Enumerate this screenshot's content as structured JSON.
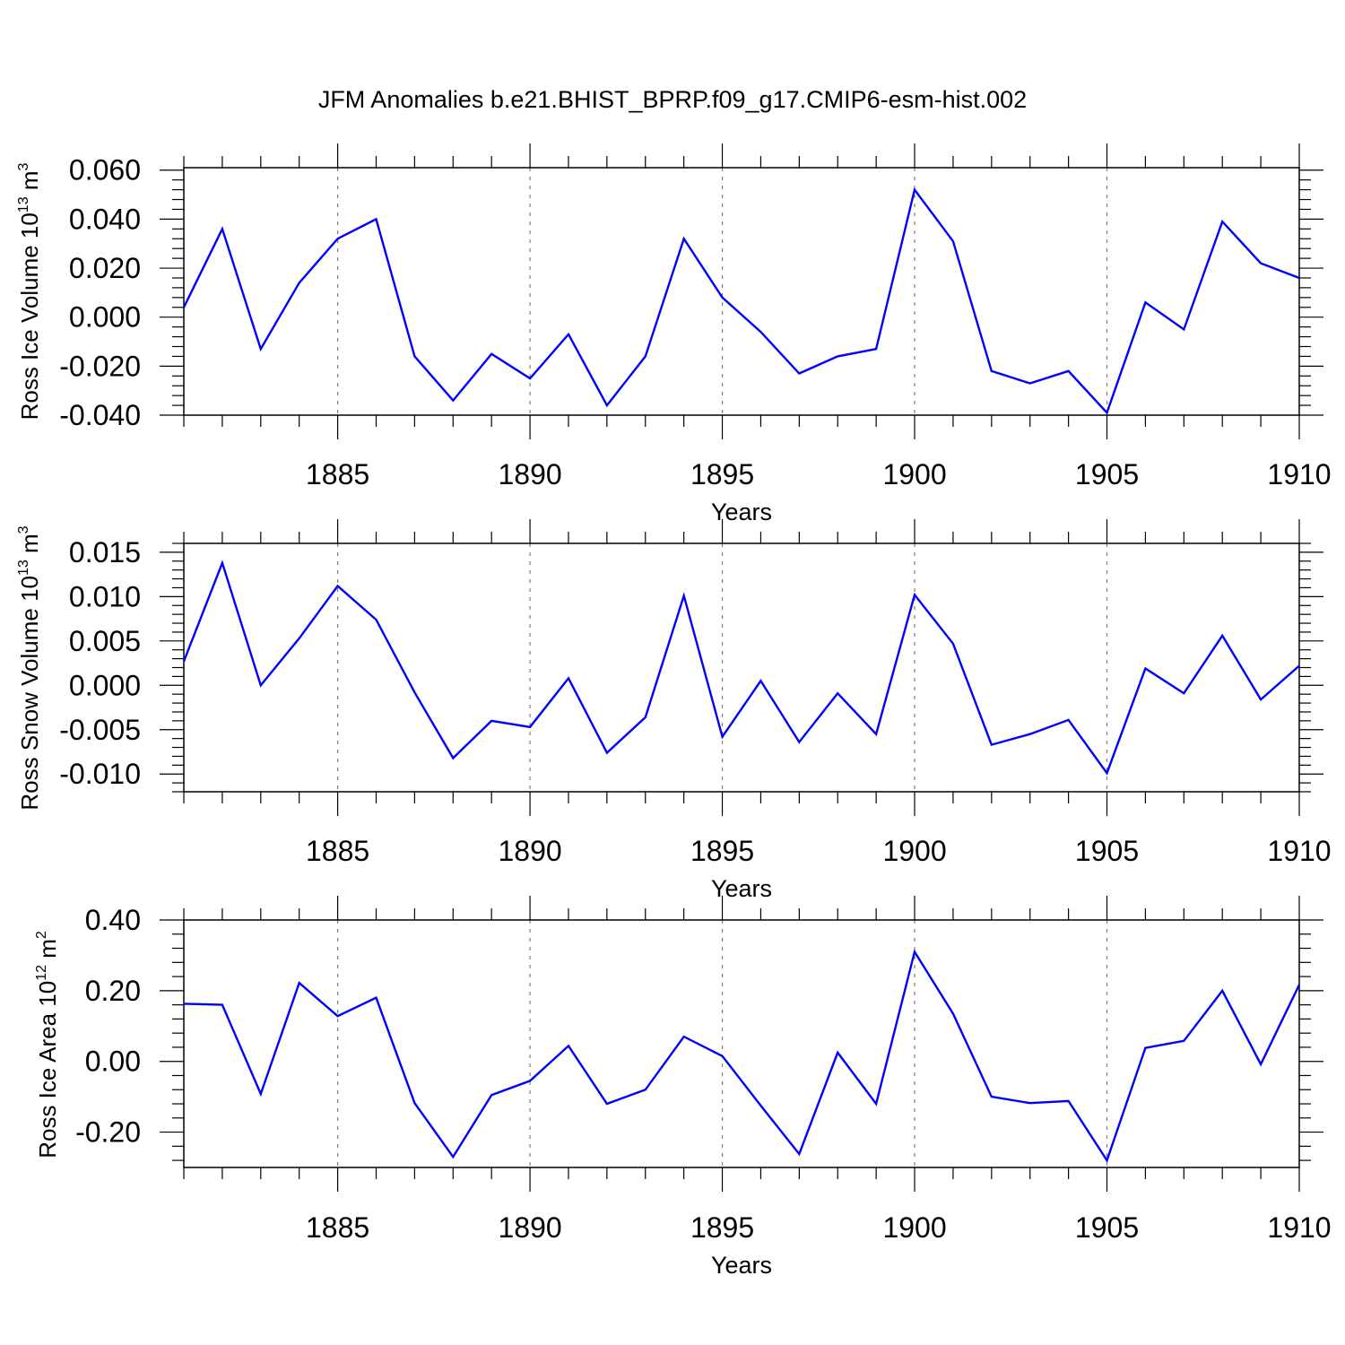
{
  "title": "JFM Anomalies b.e21.BHIST_BPRP.f09_g17.CMIP6-esm-hist.002",
  "colors": {
    "series": "#0000ff",
    "axis": "#000000",
    "grid": "#7f7f7f"
  },
  "chart_data": [
    {
      "type": "line",
      "ylabel_main": "Ross Ice Volume 10",
      "ylabel_exp": "13",
      "ylabel_unit": " m",
      "ylabel_unit_exp": "3",
      "xlabel": "Years",
      "xlim": [
        1881,
        1910
      ],
      "ylim": [
        -0.04,
        0.061
      ],
      "yticks": [
        0.06,
        0.04,
        0.02,
        0.0,
        -0.02,
        -0.04
      ],
      "ytick_labels": [
        "0.060",
        "0.040",
        "0.020",
        "0.000",
        "-0.020",
        "-0.040"
      ],
      "xticks": [
        1885,
        1890,
        1895,
        1900,
        1905,
        1910
      ],
      "xtick_labels": [
        "1885",
        "1890",
        "1895",
        "1900",
        "1905",
        "1910"
      ],
      "x": [
        1881,
        1882,
        1883,
        1884,
        1885,
        1886,
        1887,
        1888,
        1889,
        1890,
        1891,
        1892,
        1893,
        1894,
        1895,
        1896,
        1897,
        1898,
        1899,
        1900,
        1901,
        1902,
        1903,
        1904,
        1905,
        1906,
        1907,
        1908,
        1909,
        1910
      ],
      "values": [
        0.004,
        0.036,
        -0.013,
        0.014,
        0.032,
        0.04,
        -0.016,
        -0.034,
        -0.015,
        -0.025,
        -0.007,
        -0.036,
        -0.016,
        0.032,
        0.008,
        -0.006,
        -0.023,
        -0.016,
        -0.013,
        0.052,
        0.031,
        -0.022,
        -0.027,
        -0.022,
        -0.039,
        0.006,
        -0.005,
        0.039,
        0.022,
        0.016
      ]
    },
    {
      "type": "line",
      "ylabel_main": "Ross Snow Volume 10",
      "ylabel_exp": "13",
      "ylabel_unit": " m",
      "ylabel_unit_exp": "3",
      "xlabel": "Years",
      "xlim": [
        1881,
        1910
      ],
      "ylim": [
        -0.012,
        0.016
      ],
      "yticks": [
        0.015,
        0.01,
        0.005,
        0.0,
        -0.005,
        -0.01
      ],
      "ytick_labels": [
        "0.015",
        "0.010",
        "0.005",
        "0.000",
        "-0.005",
        "-0.010"
      ],
      "xticks": [
        1885,
        1890,
        1895,
        1900,
        1905,
        1910
      ],
      "xtick_labels": [
        "1885",
        "1890",
        "1895",
        "1900",
        "1905",
        "1910"
      ],
      "x": [
        1881,
        1882,
        1883,
        1884,
        1885,
        1886,
        1887,
        1888,
        1889,
        1890,
        1891,
        1892,
        1893,
        1894,
        1895,
        1896,
        1897,
        1898,
        1899,
        1900,
        1901,
        1902,
        1903,
        1904,
        1905,
        1906,
        1907,
        1908,
        1909,
        1910
      ],
      "values": [
        0.0027,
        0.0138,
        0.0,
        0.0053,
        0.0112,
        0.0074,
        -0.0008,
        -0.0082,
        -0.004,
        -0.0047,
        0.0008,
        -0.0076,
        -0.0036,
        0.0101,
        -0.0058,
        0.0005,
        -0.0064,
        -0.0009,
        -0.0055,
        0.0102,
        0.0047,
        -0.0067,
        -0.0055,
        -0.0039,
        -0.0099,
        0.0019,
        -0.0009,
        0.0056,
        -0.0016,
        0.0022
      ]
    },
    {
      "type": "line",
      "ylabel_main": "Ross Ice Area 10",
      "ylabel_exp": "12",
      "ylabel_unit": " m",
      "ylabel_unit_exp": "2",
      "xlabel": "Years",
      "xlim": [
        1881,
        1910
      ],
      "ylim": [
        -0.3,
        0.4
      ],
      "yticks": [
        0.4,
        0.2,
        0.0,
        -0.2
      ],
      "ytick_labels": [
        "0.40",
        "0.20",
        "0.00",
        "-0.20"
      ],
      "xticks": [
        1885,
        1890,
        1895,
        1900,
        1905,
        1910
      ],
      "xtick_labels": [
        "1885",
        "1890",
        "1895",
        "1900",
        "1905",
        "1910"
      ],
      "x": [
        1881,
        1882,
        1883,
        1884,
        1885,
        1886,
        1887,
        1888,
        1889,
        1890,
        1891,
        1892,
        1893,
        1894,
        1895,
        1896,
        1897,
        1898,
        1899,
        1900,
        1901,
        1902,
        1903,
        1904,
        1905,
        1906,
        1907,
        1908,
        1909,
        1910
      ],
      "values": [
        0.163,
        0.16,
        -0.092,
        0.222,
        0.128,
        0.18,
        -0.118,
        -0.27,
        -0.095,
        -0.055,
        0.044,
        -0.12,
        -0.08,
        0.07,
        0.015,
        -0.125,
        -0.262,
        0.025,
        -0.12,
        0.31,
        0.135,
        -0.1,
        -0.118,
        -0.112,
        -0.28,
        0.038,
        0.058,
        0.2,
        -0.008,
        0.217
      ]
    }
  ]
}
